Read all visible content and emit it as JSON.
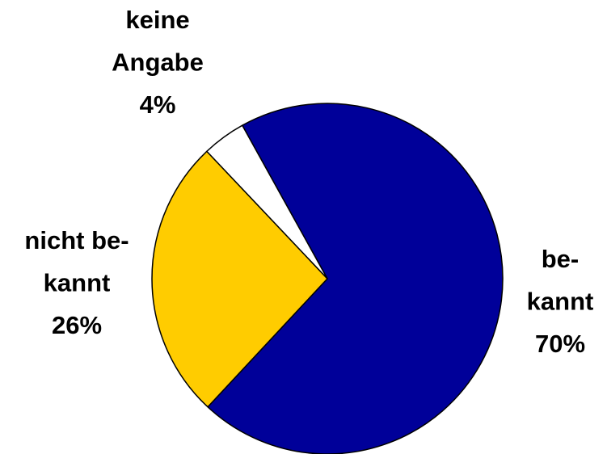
{
  "chart_data": {
    "type": "pie",
    "categories": [
      [
        "be-",
        "kannt"
      ],
      [
        "nicht be-",
        "kannt"
      ],
      [
        "keine",
        "Angabe"
      ]
    ],
    "values": [
      70,
      26,
      4
    ],
    "value_labels": [
      "70%",
      "26%",
      "4%"
    ],
    "colors": [
      "#000099",
      "#ffcc00",
      "#ffffff"
    ]
  }
}
